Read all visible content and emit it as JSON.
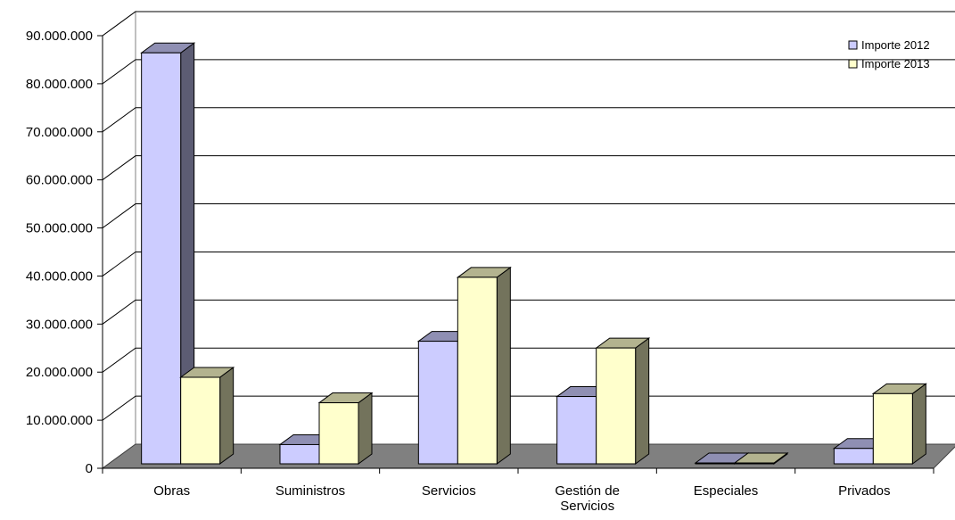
{
  "chart_data": {
    "type": "bar",
    "style": "3d-clustered-column",
    "title": "",
    "xlabel": "",
    "ylabel": "",
    "categories": [
      "Obras",
      "Suministros",
      "Servicios",
      "Gestión de Servicios",
      "Especiales",
      "Privados"
    ],
    "category_lines": [
      [
        "Obras"
      ],
      [
        "Suministros"
      ],
      [
        "Servicios"
      ],
      [
        "Gestión de",
        "Servicios"
      ],
      [
        "Especiales"
      ],
      [
        "Privados"
      ]
    ],
    "series": [
      {
        "name": "Importe 2012",
        "color": "#ccccff",
        "values": [
          85500000,
          4000000,
          25500000,
          14000000,
          0,
          3200000
        ]
      },
      {
        "name": "Importe 2013",
        "color": "#ffffcc",
        "values": [
          18000000,
          12700000,
          38800000,
          24100000,
          0,
          14600000
        ]
      }
    ],
    "ylim": [
      0,
      90000000
    ],
    "yticks": [
      0,
      10000000,
      20000000,
      30000000,
      40000000,
      50000000,
      60000000,
      70000000,
      80000000,
      90000000
    ],
    "ytick_labels": [
      "0",
      "10.000.000",
      "20.000.000",
      "30.000.000",
      "40.000.000",
      "50.000.000",
      "60.000.000",
      "70.000.000",
      "80.000.000",
      "90.000.000"
    ],
    "grid": true,
    "legend": "top-right",
    "floor_color": "#808080"
  }
}
